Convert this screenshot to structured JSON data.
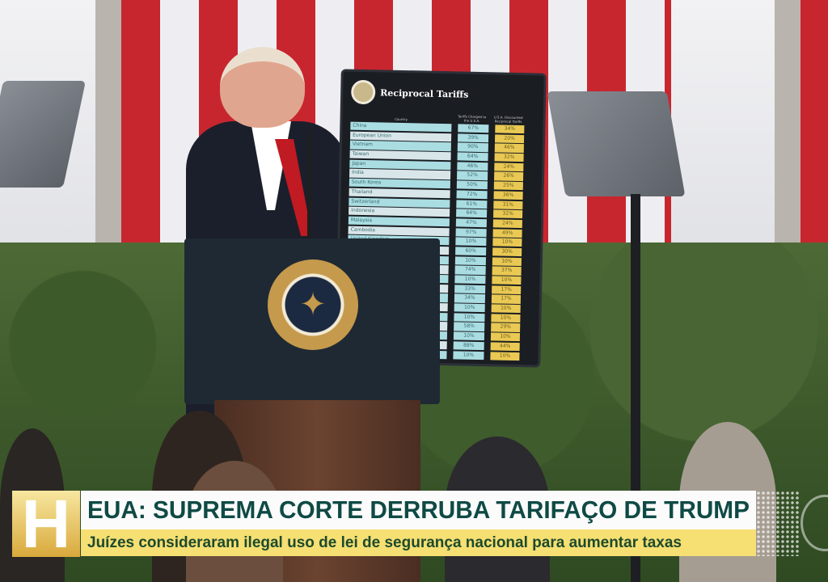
{
  "chyron": {
    "program_logo": "H",
    "headline": "EUA: SUPREMA CORTE DERRUBA TARIFAÇO DE TRUMP",
    "subheadline": "Juízes consideraram ilegal uso de lei de segurança nacional para aumentar taxas",
    "colors": {
      "headline_bg": "#fbfbfb",
      "headline_text": "#0f4a45",
      "sub_bg": "#f6df73",
      "logo": "#d9a93c"
    }
  },
  "board": {
    "title": "Reciprocal Tariffs",
    "col_country": "Country",
    "col_charged": "Tariffs Charged to the U.S.A.",
    "col_reciprocal": "U.S.A. Discounted Reciprocal Tariffs",
    "rows": [
      {
        "country": "China",
        "charged": "67%",
        "reciprocal": "34%"
      },
      {
        "country": "European Union",
        "charged": "39%",
        "reciprocal": "20%"
      },
      {
        "country": "Vietnam",
        "charged": "90%",
        "reciprocal": "46%"
      },
      {
        "country": "Taiwan",
        "charged": "64%",
        "reciprocal": "32%"
      },
      {
        "country": "Japan",
        "charged": "46%",
        "reciprocal": "24%"
      },
      {
        "country": "India",
        "charged": "52%",
        "reciprocal": "26%"
      },
      {
        "country": "South Korea",
        "charged": "50%",
        "reciprocal": "25%"
      },
      {
        "country": "Thailand",
        "charged": "72%",
        "reciprocal": "36%"
      },
      {
        "country": "Switzerland",
        "charged": "61%",
        "reciprocal": "31%"
      },
      {
        "country": "Indonesia",
        "charged": "64%",
        "reciprocal": "32%"
      },
      {
        "country": "Malaysia",
        "charged": "47%",
        "reciprocal": "24%"
      },
      {
        "country": "Cambodia",
        "charged": "97%",
        "reciprocal": "49%"
      },
      {
        "country": "United Kingdom",
        "charged": "10%",
        "reciprocal": "10%"
      },
      {
        "country": "",
        "charged": "60%",
        "reciprocal": "30%"
      },
      {
        "country": "",
        "charged": "10%",
        "reciprocal": "10%"
      },
      {
        "country": "",
        "charged": "74%",
        "reciprocal": "37%"
      },
      {
        "country": "",
        "charged": "10%",
        "reciprocal": "10%"
      },
      {
        "country": "",
        "charged": "33%",
        "reciprocal": "17%"
      },
      {
        "country": "",
        "charged": "34%",
        "reciprocal": "17%"
      },
      {
        "country": "",
        "charged": "10%",
        "reciprocal": "10%"
      },
      {
        "country": "",
        "charged": "10%",
        "reciprocal": "10%"
      },
      {
        "country": "",
        "charged": "58%",
        "reciprocal": "29%"
      },
      {
        "country": "",
        "charged": "10%",
        "reciprocal": "10%"
      },
      {
        "country": "",
        "charged": "88%",
        "reciprocal": "44%"
      },
      {
        "country": "",
        "charged": "10%",
        "reciprocal": "10%"
      }
    ]
  },
  "seal": {
    "icon": "presidential-seal-eagle",
    "text": "SEAL OF THE PRESIDENT OF THE UNITED STATES"
  }
}
